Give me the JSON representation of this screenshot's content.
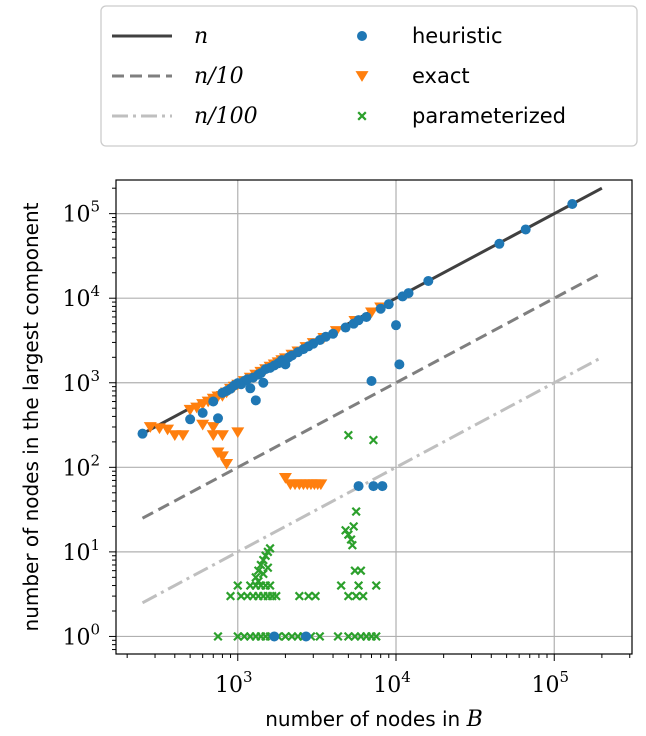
{
  "chart_data": {
    "type": "scatter",
    "xlabel": "number of nodes in B",
    "ylabel": "number of nodes in the largest component",
    "xscale": "log",
    "yscale": "log",
    "xlim": [
      170,
      310000
    ],
    "ylim": [
      0.62,
      250000
    ],
    "grid": true,
    "legend_position": "top, above plot",
    "x_ticks": [
      {
        "value": 1000,
        "base": "10",
        "exp": "3"
      },
      {
        "value": 10000,
        "base": "10",
        "exp": "4"
      },
      {
        "value": 100000,
        "base": "10",
        "exp": "5"
      }
    ],
    "y_ticks": [
      {
        "value": 1,
        "base": "10",
        "exp": "0"
      },
      {
        "value": 10,
        "base": "10",
        "exp": "1"
      },
      {
        "value": 100,
        "base": "10",
        "exp": "2"
      },
      {
        "value": 1000,
        "base": "10",
        "exp": "3"
      },
      {
        "value": 10000,
        "base": "10",
        "exp": "4"
      },
      {
        "value": 100000,
        "base": "10",
        "exp": "5"
      }
    ],
    "lines": [
      {
        "name": "n",
        "divisor": 1,
        "color": "#404040",
        "dash": "solid",
        "x_range": [
          250,
          200000
        ]
      },
      {
        "name": "n/10",
        "divisor": 10,
        "color": "#7f7f7f",
        "dash": "dashed",
        "x_range": [
          250,
          200000
        ]
      },
      {
        "name": "n/100",
        "divisor": 100,
        "color": "#bfbfbf",
        "dash": "dashdot",
        "x_range": [
          250,
          200000
        ]
      }
    ],
    "series": [
      {
        "name": "heuristic",
        "marker": "circle",
        "color": "#1f77b4",
        "points": [
          [
            250,
            250
          ],
          [
            500,
            370
          ],
          [
            600,
            440
          ],
          [
            700,
            600
          ],
          [
            750,
            380
          ],
          [
            800,
            760
          ],
          [
            850,
            800
          ],
          [
            900,
            850
          ],
          [
            950,
            930
          ],
          [
            1000,
            990
          ],
          [
            1050,
            960
          ],
          [
            1100,
            1050
          ],
          [
            1150,
            1100
          ],
          [
            1200,
            860
          ],
          [
            1250,
            1150
          ],
          [
            1300,
            620
          ],
          [
            1350,
            1250
          ],
          [
            1400,
            1300
          ],
          [
            1450,
            1000
          ],
          [
            1500,
            1450
          ],
          [
            1600,
            1500
          ],
          [
            1700,
            1600
          ],
          [
            1800,
            1700
          ],
          [
            1900,
            1850
          ],
          [
            2000,
            1650
          ],
          [
            2100,
            2000
          ],
          [
            2200,
            2100
          ],
          [
            2400,
            2300
          ],
          [
            2600,
            2500
          ],
          [
            2800,
            2700
          ],
          [
            3000,
            2900
          ],
          [
            3300,
            3200
          ],
          [
            3600,
            3500
          ],
          [
            4000,
            3800
          ],
          [
            4800,
            4500
          ],
          [
            5400,
            5000
          ],
          [
            5800,
            5500
          ],
          [
            6500,
            6000
          ],
          [
            7000,
            1050
          ],
          [
            8000,
            7500
          ],
          [
            9000,
            8500
          ],
          [
            10000,
            4800
          ],
          [
            10500,
            1650
          ],
          [
            11000,
            10500
          ],
          [
            12000,
            11500
          ],
          [
            16000,
            16000
          ],
          [
            45000,
            44000
          ],
          [
            66000,
            65000
          ],
          [
            130000,
            130000
          ],
          [
            5800,
            60
          ],
          [
            7200,
            60
          ],
          [
            8200,
            60
          ],
          [
            1700,
            1
          ],
          [
            2700,
            1
          ]
        ]
      },
      {
        "name": "exact",
        "marker": "triangle-down",
        "color": "#ff7f0e",
        "points": [
          [
            280,
            300
          ],
          [
            320,
            290
          ],
          [
            360,
            280
          ],
          [
            400,
            240
          ],
          [
            450,
            240
          ],
          [
            500,
            480
          ],
          [
            550,
            510
          ],
          [
            600,
            560
          ],
          [
            650,
            600
          ],
          [
            700,
            650
          ],
          [
            750,
            690
          ],
          [
            800,
            700
          ],
          [
            850,
            770
          ],
          [
            900,
            850
          ],
          [
            950,
            900
          ],
          [
            1000,
            950
          ],
          [
            1100,
            1050
          ],
          [
            1200,
            1150
          ],
          [
            1300,
            1250
          ],
          [
            1400,
            1350
          ],
          [
            1500,
            1450
          ],
          [
            1600,
            1550
          ],
          [
            1700,
            1650
          ],
          [
            1800,
            1750
          ],
          [
            1900,
            1850
          ],
          [
            2000,
            1950
          ],
          [
            2200,
            2150
          ],
          [
            2400,
            2350
          ],
          [
            2700,
            2650
          ],
          [
            3000,
            2950
          ],
          [
            3500,
            3400
          ],
          [
            4200,
            4100
          ],
          [
            5500,
            5400
          ],
          [
            7000,
            6800
          ],
          [
            8000,
            7800
          ],
          [
            600,
            320
          ],
          [
            700,
            300
          ],
          [
            800,
            240
          ],
          [
            1000,
            260
          ],
          [
            700,
            240
          ],
          [
            750,
            150
          ],
          [
            800,
            135
          ],
          [
            850,
            110
          ],
          [
            2000,
            75
          ],
          [
            2150,
            63
          ],
          [
            2300,
            63
          ],
          [
            2450,
            63
          ],
          [
            2600,
            63
          ],
          [
            2750,
            63
          ],
          [
            2900,
            63
          ],
          [
            3050,
            63
          ],
          [
            3200,
            63
          ],
          [
            3350,
            63
          ]
        ]
      },
      {
        "name": "parameterized",
        "marker": "x",
        "color": "#2ca02c",
        "points": [
          [
            750,
            1
          ],
          [
            1000,
            1
          ],
          [
            1100,
            1
          ],
          [
            1200,
            1
          ],
          [
            1300,
            1
          ],
          [
            1400,
            1
          ],
          [
            1500,
            1
          ],
          [
            1600,
            1
          ],
          [
            1800,
            1
          ],
          [
            2000,
            1
          ],
          [
            2200,
            1
          ],
          [
            2400,
            1
          ],
          [
            2600,
            1
          ],
          [
            2900,
            1
          ],
          [
            3300,
            1
          ],
          [
            4300,
            1
          ],
          [
            5000,
            1
          ],
          [
            5500,
            1
          ],
          [
            6000,
            1
          ],
          [
            6500,
            1
          ],
          [
            7000,
            1
          ],
          [
            7500,
            1
          ],
          [
            900,
            3
          ],
          [
            1050,
            3
          ],
          [
            1150,
            3
          ],
          [
            1250,
            3
          ],
          [
            1350,
            3
          ],
          [
            1450,
            3
          ],
          [
            1550,
            3
          ],
          [
            1650,
            3
          ],
          [
            1750,
            3
          ],
          [
            2450,
            3
          ],
          [
            2800,
            3
          ],
          [
            3100,
            3
          ],
          [
            5000,
            3
          ],
          [
            5600,
            3
          ],
          [
            6200,
            3
          ],
          [
            1000,
            4
          ],
          [
            1200,
            4
          ],
          [
            1300,
            4
          ],
          [
            1400,
            4
          ],
          [
            1500,
            4
          ],
          [
            1600,
            4
          ],
          [
            4500,
            4
          ],
          [
            5800,
            4
          ],
          [
            7500,
            4
          ],
          [
            5500,
            6
          ],
          [
            6000,
            6
          ],
          [
            1300,
            5
          ],
          [
            1350,
            6
          ],
          [
            1400,
            7
          ],
          [
            1450,
            8
          ],
          [
            1500,
            9
          ],
          [
            1550,
            10
          ],
          [
            1600,
            11
          ],
          [
            1350,
            4.5
          ],
          [
            1450,
            5.5
          ],
          [
            1550,
            6.5
          ],
          [
            4800,
            18
          ],
          [
            5000,
            16
          ],
          [
            5200,
            14
          ],
          [
            5400,
            20
          ],
          [
            5600,
            30
          ],
          [
            5300,
            12
          ],
          [
            5000,
            240
          ],
          [
            7200,
            210
          ]
        ]
      }
    ]
  }
}
